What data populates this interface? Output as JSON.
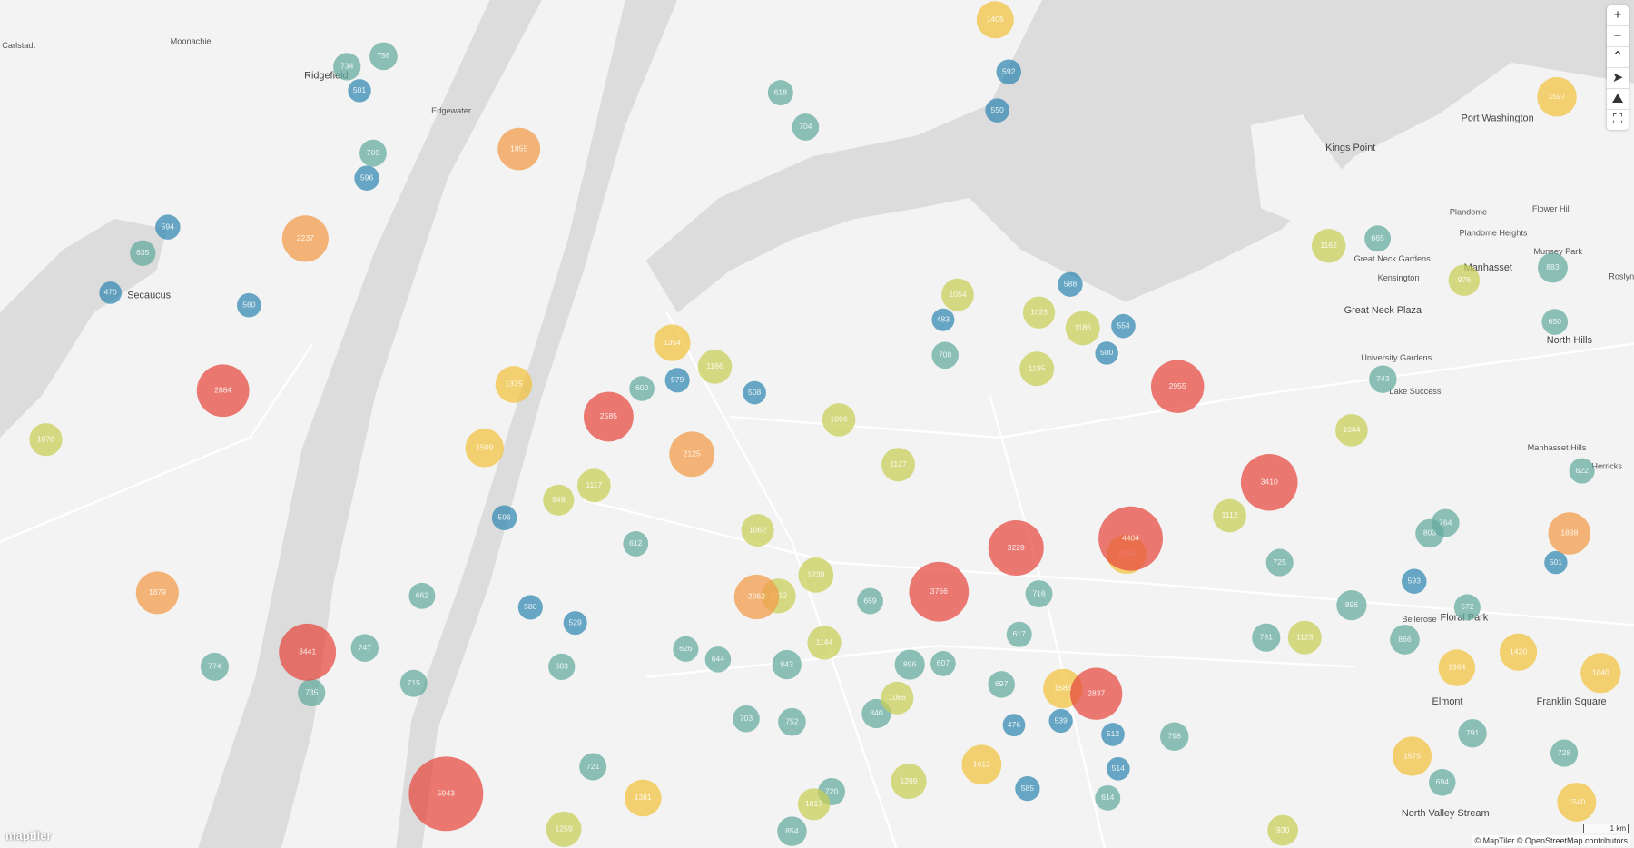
{
  "map": {
    "places": [
      "Moonachie",
      "Carlstadt",
      "Ridgefield",
      "Edgewater",
      "Secaucus",
      "Kings Point",
      "Port Washington",
      "Plandome",
      "Flower Hill",
      "Plandome Heights",
      "Great Neck Gardens",
      "Kensington",
      "Manhasset",
      "Munsey Park",
      "Roslyn",
      "Great Neck Plaza",
      "North Hills",
      "University Gardens",
      "Lake Success",
      "Manhasset Hills",
      "Herricks",
      "Bellerose",
      "Floral Park",
      "Elmont",
      "Franklin Square",
      "North Valley Stream"
    ],
    "clusters": [
      5943,
      3766,
      3410,
      4404,
      3441,
      2884,
      2237,
      2955,
      3229,
      2585,
      2125,
      1855,
      2062,
      1879,
      1838,
      1420,
      1575,
      1509,
      1354,
      1166,
      1405,
      1597,
      1023,
      1186,
      1195,
      1054,
      1076,
      1640,
      1540,
      1584,
      2837,
      1586,
      1144,
      1117,
      1062,
      1212,
      1239,
      1096,
      1127,
      1066,
      1259,
      1375,
      1364,
      1123,
      1112,
      1044,
      1162,
      976,
      883,
      650,
      743,
      622,
      725,
      774,
      594,
      635,
      470,
      560,
      709,
      596,
      756,
      501,
      734,
      618,
      704,
      550,
      592,
      798,
      930,
      694,
      728,
      791,
      781,
      896,
      866,
      672,
      593,
      501,
      764,
      803,
      665,
      554,
      500,
      588,
      483,
      700,
      508,
      579,
      600,
      843,
      659,
      607,
      840,
      896,
      752,
      703,
      716,
      617,
      697,
      539,
      512,
      614,
      514,
      476,
      585,
      1613,
      1269,
      1381,
      1017,
      854,
      720,
      747,
      735,
      662,
      715,
      596,
      949,
      644,
      626,
      683,
      721,
      529,
      580,
      612
    ],
    "attribution": "© MapTiler © OpenStreetMap contributors",
    "scale": "1 km",
    "logo": "maptiler"
  }
}
